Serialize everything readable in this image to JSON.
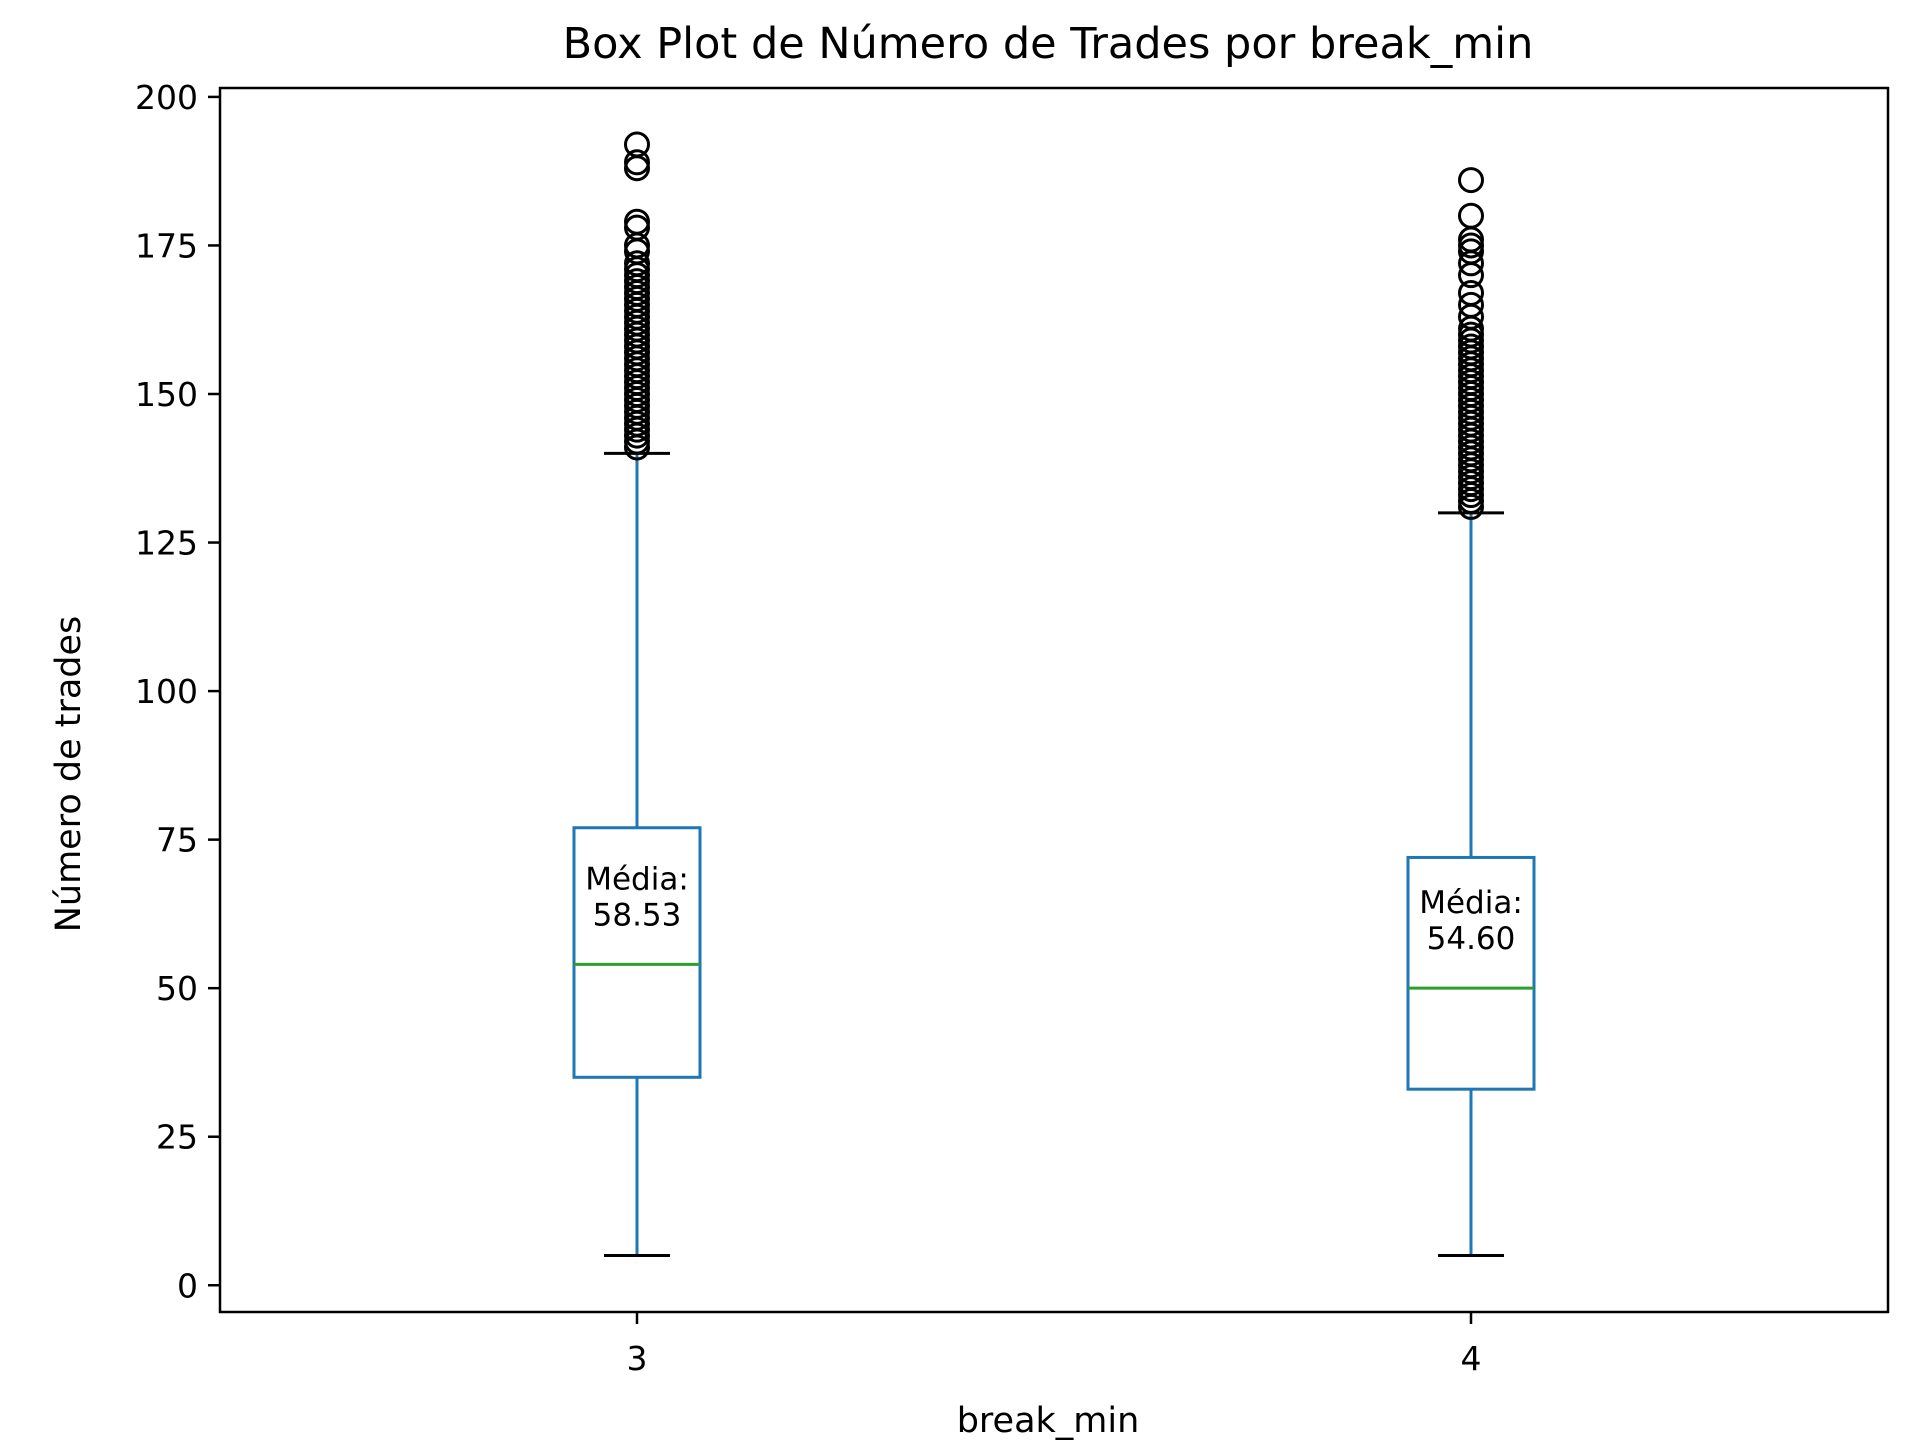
{
  "chart_data": {
    "type": "box",
    "title": "Box Plot de Número de Trades por break_min",
    "xlabel": "break_min",
    "ylabel": "Número de trades",
    "categories": [
      "3",
      "4"
    ],
    "ylim": [
      -4.5,
      201.5
    ],
    "yticks": [
      0,
      25,
      50,
      75,
      100,
      125,
      150,
      175,
      200
    ],
    "grid": false,
    "colors": {
      "box": "#1f77b4",
      "median": "#2ca02c",
      "caps": "#000000",
      "fliers": "#000000",
      "text": "#000000"
    },
    "boxes": [
      {
        "category": "3",
        "whisker_low": 5,
        "q1": 35,
        "median": 54,
        "q3": 77,
        "whisker_high": 140,
        "mean_label": "Média:",
        "mean_value": "58.53",
        "mean": 58.53,
        "outliers": [
          141,
          142,
          143,
          144,
          145,
          146,
          147,
          148,
          149,
          150,
          151,
          152,
          153,
          154,
          155,
          156,
          157,
          158,
          159,
          160,
          161,
          162,
          163,
          164,
          165,
          166,
          167,
          168,
          169,
          170,
          171,
          172,
          174,
          175,
          178,
          179,
          188,
          189,
          192
        ]
      },
      {
        "category": "4",
        "whisker_low": 5,
        "q1": 33,
        "median": 50,
        "q3": 72,
        "whisker_high": 130,
        "mean_label": "Média:",
        "mean_value": "54.60",
        "mean": 54.6,
        "outliers": [
          131,
          132,
          133,
          134,
          135,
          136,
          137,
          138,
          139,
          140,
          141,
          142,
          143,
          144,
          145,
          146,
          147,
          148,
          149,
          150,
          151,
          152,
          153,
          154,
          155,
          156,
          157,
          158,
          159,
          160,
          161,
          163,
          165,
          167,
          170,
          172,
          174,
          175,
          176,
          180,
          186
        ]
      }
    ]
  }
}
